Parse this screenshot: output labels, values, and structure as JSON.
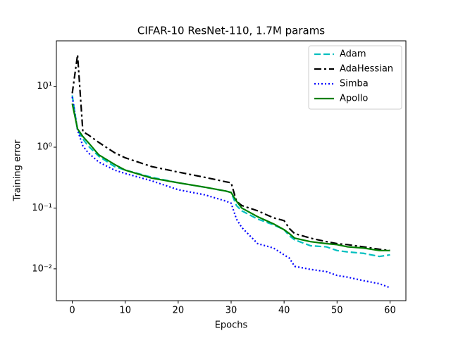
{
  "chart_data": {
    "type": "line",
    "title": "CIFAR-10 ResNet-110, 1.7M params",
    "xlabel": "Epochs",
    "ylabel": "Training error",
    "yscale": "log",
    "legend": "upper right",
    "xlim": [
      -3,
      63
    ],
    "ylim": [
      0.003,
      56
    ],
    "xticks": [
      0,
      10,
      20,
      30,
      40,
      50,
      60
    ],
    "yticks": [
      {
        "value": 0.01,
        "label": "10⁻²"
      },
      {
        "value": 0.1,
        "label": "10⁻¹"
      },
      {
        "value": 1,
        "label": "10⁰"
      },
      {
        "value": 10,
        "label": "10¹"
      }
    ],
    "x": [
      0,
      1,
      2,
      3,
      5,
      8,
      10,
      15,
      20,
      25,
      29,
      30,
      31,
      32,
      35,
      38,
      40,
      41,
      42,
      45,
      48,
      50,
      52,
      55,
      58,
      60
    ],
    "series": [
      {
        "name": "Adam",
        "color": "#00bfbf",
        "dash": "dashed",
        "values": [
          7.1,
          1.9,
          1.37,
          1.05,
          0.71,
          0.48,
          0.42,
          0.32,
          0.26,
          0.22,
          0.19,
          0.18,
          0.11,
          0.09,
          0.066,
          0.053,
          0.044,
          0.035,
          0.03,
          0.024,
          0.023,
          0.02,
          0.019,
          0.018,
          0.016,
          0.017
        ]
      },
      {
        "name": "AdaHessian",
        "color": "#000000",
        "dash": "dashdot",
        "values": [
          7.7,
          33,
          1.8,
          1.6,
          1.2,
          0.81,
          0.67,
          0.48,
          0.39,
          0.32,
          0.27,
          0.26,
          0.13,
          0.11,
          0.09,
          0.069,
          0.062,
          0.046,
          0.038,
          0.032,
          0.028,
          0.026,
          0.025,
          0.023,
          0.021,
          0.02
        ]
      },
      {
        "name": "Simba",
        "color": "#0000ff",
        "dash": "dotted",
        "values": [
          6.7,
          1.9,
          1.05,
          0.81,
          0.57,
          0.42,
          0.37,
          0.28,
          0.2,
          0.165,
          0.13,
          0.12,
          0.066,
          0.048,
          0.026,
          0.022,
          0.017,
          0.015,
          0.011,
          0.0098,
          0.009,
          0.0078,
          0.0073,
          0.0064,
          0.0057,
          0.0049
        ]
      },
      {
        "name": "Apollo",
        "color": "#008000",
        "dash": "solid",
        "values": [
          5.2,
          2.0,
          1.5,
          1.2,
          0.75,
          0.52,
          0.42,
          0.31,
          0.26,
          0.22,
          0.19,
          0.18,
          0.13,
          0.1,
          0.072,
          0.055,
          0.044,
          0.038,
          0.032,
          0.028,
          0.026,
          0.025,
          0.023,
          0.022,
          0.02,
          0.02
        ]
      }
    ]
  }
}
